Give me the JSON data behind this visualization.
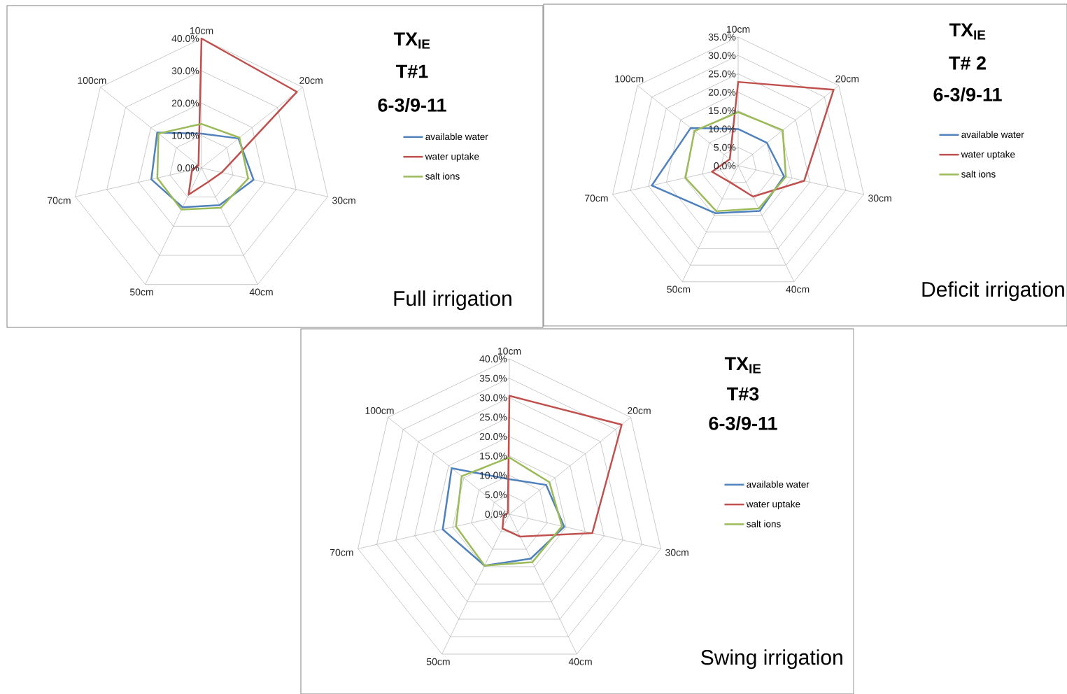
{
  "chart_data": [
    {
      "type": "radar",
      "title": "TX$_{IE}$",
      "subtitle": "T#1",
      "annotations": [
        "6-3/9-11",
        "Full irrigation"
      ],
      "categories": [
        "10cm",
        "20cm",
        "30cm",
        "40cm",
        "50cm",
        "70cm",
        "100cm"
      ],
      "series": [
        {
          "name": "available water",
          "color": "#4f81bd",
          "values": [
            10.6,
            14.6,
            16.5,
            12.8,
            13.5,
            15.9,
            17.5
          ]
        },
        {
          "name": "water uptake",
          "color": "#c0504d",
          "values": [
            40,
            37.7,
            6.4,
            4.8,
            9.2,
            3,
            1.2
          ]
        },
        {
          "name": "salt ions",
          "color": "#9bbb59",
          "values": [
            13.6,
            15,
            14.8,
            13.7,
            14.3,
            14,
            17
          ]
        }
      ],
      "ylim": [
        0,
        40
      ],
      "yticks": [
        {
          "value": 0,
          "label": "0.0%"
        },
        {
          "value": 10,
          "label": "10.0%"
        },
        {
          "value": 20,
          "label": "20.0%"
        },
        {
          "value": 30,
          "label": "30.0%"
        },
        {
          "value": 40,
          "label": "40.0%"
        }
      ],
      "grid": true,
      "legend": "right"
    },
    {
      "type": "radar",
      "title": "TX$_{IE}$",
      "subtitle": "T# 2",
      "annotations": [
        "6-3/9-11",
        "Deficit irrigation"
      ],
      "categories": [
        "10cm",
        "20cm",
        "30cm",
        "40cm",
        "50cm",
        "70cm",
        "100cm"
      ],
      "series": [
        {
          "name": "available water",
          "color": "#4f81bd",
          "values": [
            10,
            10,
            12.8,
            13.6,
            14.3,
            24.1,
            16.5
          ]
        },
        {
          "name": "water uptake",
          "color": "#c0504d",
          "values": [
            22.8,
            33.2,
            18.4,
            9.3,
            5,
            7.3,
            2.9
          ]
        },
        {
          "name": "salt ions",
          "color": "#9bbb59",
          "values": [
            14.6,
            15.5,
            13.3,
            12.9,
            13.7,
            14.7,
            15.2
          ]
        }
      ],
      "ylim": [
        0,
        35
      ],
      "yticks": [
        {
          "value": 0,
          "label": "0.0%"
        },
        {
          "value": 5,
          "label": "5.0%"
        },
        {
          "value": 10,
          "label": "10.0%"
        },
        {
          "value": 15,
          "label": "15.0%"
        },
        {
          "value": 20,
          "label": "20.0%"
        },
        {
          "value": 25,
          "label": "25.0%"
        },
        {
          "value": 30,
          "label": "30.0%"
        },
        {
          "value": 35,
          "label": "35.0%"
        }
      ],
      "grid": true,
      "legend": "right"
    },
    {
      "type": "radar",
      "title": "TX$_{IE}$",
      "subtitle": "T#3",
      "annotations": [
        "6-3/9-11",
        "Swing irrigation"
      ],
      "categories": [
        "10cm",
        "20cm",
        "30cm",
        "40cm",
        "50cm",
        "70cm",
        "100cm"
      ],
      "series": [
        {
          "name": "available water",
          "color": "#4f81bd",
          "values": [
            9,
            12.1,
            14.5,
            12.7,
            14.7,
            17.6,
            19
          ]
        },
        {
          "name": "water uptake",
          "color": "#c0504d",
          "values": [
            30.5,
            37,
            21.9,
            6.4,
            4.1,
            1.5,
            0.5
          ]
        },
        {
          "name": "salt ions",
          "color": "#9bbb59",
          "values": [
            14.6,
            13.2,
            13.9,
            13.7,
            14.7,
            14.1,
            15.7
          ]
        }
      ],
      "ylim": [
        0,
        40
      ],
      "yticks": [
        {
          "value": 0,
          "label": "0.0%"
        },
        {
          "value": 5,
          "label": "5.0%"
        },
        {
          "value": 10,
          "label": "10.0%"
        },
        {
          "value": 15,
          "label": "15.0%"
        },
        {
          "value": 20,
          "label": "20.0%"
        },
        {
          "value": 25,
          "label": "25.0%"
        },
        {
          "value": 30,
          "label": "30.0%"
        },
        {
          "value": 35,
          "label": "35.0%"
        },
        {
          "value": 40,
          "label": "40.0%"
        }
      ],
      "grid": true,
      "legend": "right"
    }
  ]
}
